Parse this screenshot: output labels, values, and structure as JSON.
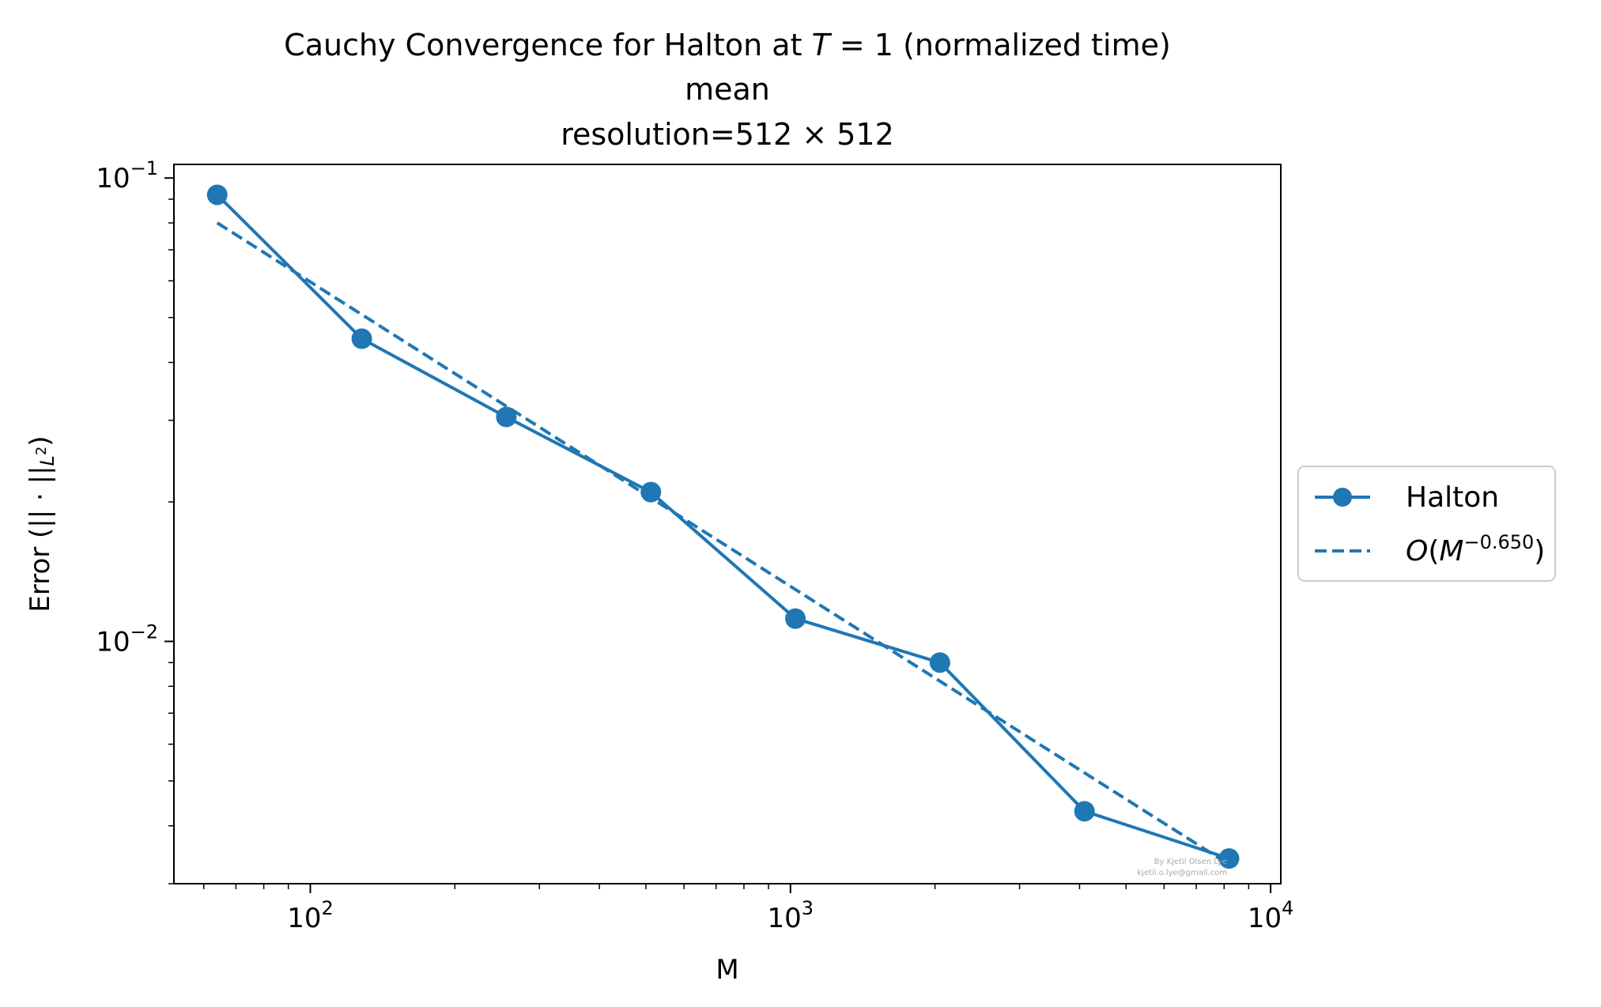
{
  "chart_data": {
    "type": "line",
    "title": {
      "prefix": "Cauchy Convergence for Halton at ",
      "var": "T",
      "eq": " = 1",
      "suffix": " (normalized time)"
    },
    "subtitle1": "mean",
    "subtitle2": {
      "prefix": "resolution=512",
      "times": " × ",
      "suffix": "512"
    },
    "xlabel": "M",
    "ylabel": {
      "prefix": "Error (",
      "norm": "|| · ||",
      "sub_base": "L",
      "sub_exp": "2",
      "suffix": ")"
    },
    "xscale": "log",
    "yscale": "log",
    "xlim": [
      52,
      10500
    ],
    "ylim": [
      0.003,
      0.107
    ],
    "x_ticks": [
      {
        "base": "10",
        "exp": "2",
        "value": 100
      },
      {
        "base": "10",
        "exp": "3",
        "value": 1000
      },
      {
        "base": "10",
        "exp": "4",
        "value": 10000
      }
    ],
    "y_ticks": [
      {
        "base": "10",
        "exp": "−1",
        "value": 0.1
      },
      {
        "base": "10",
        "exp": "−2",
        "value": 0.01
      }
    ],
    "grid": false,
    "legend_position": "right-outside",
    "series": [
      {
        "name": "Halton",
        "style": "solid-marker",
        "color": "#1f77b4",
        "x": [
          64,
          128,
          256,
          512,
          1024,
          2048,
          4096,
          8192
        ],
        "y": [
          0.092,
          0.045,
          0.0305,
          0.021,
          0.0112,
          0.009,
          0.0043,
          0.0034
        ]
      },
      {
        "name_parts": {
          "o": "O",
          "open": "(",
          "m": "M",
          "exp": "−0.650",
          "close": ")"
        },
        "style": "dashed",
        "color": "#1f77b4",
        "x": [
          64,
          8192
        ],
        "y": [
          0.08,
          0.0033
        ]
      }
    ],
    "watermark": [
      "By Kjetil Olsen Lye",
      "kjetil.o.lye@gmail.com"
    ]
  }
}
